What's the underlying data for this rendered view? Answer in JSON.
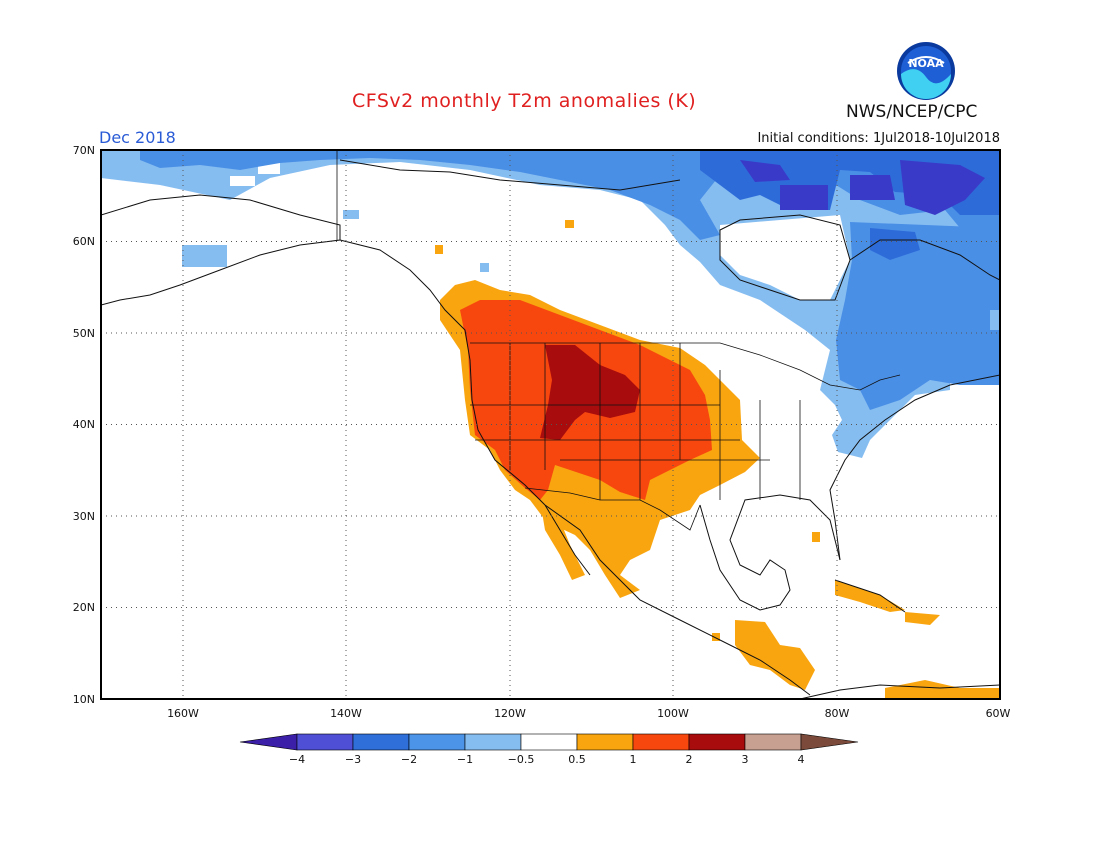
{
  "header": {
    "title": "CFSv2 monthly T2m anomalies (K)",
    "month": "Dec 2018",
    "initial_conditions": "Initial conditions: 1Jul2018-10Jul2018",
    "agency": "NWS/NCEP/CPC",
    "logo_text": "NOAA"
  },
  "map": {
    "lat_labels": [
      "70N",
      "60N",
      "50N",
      "40N",
      "30N",
      "20N",
      "10N"
    ],
    "lon_labels": [
      "160W",
      "140W",
      "120W",
      "100W",
      "80W",
      "60W"
    ],
    "region": "North America",
    "lon_range": [
      -170,
      -60
    ],
    "lat_range": [
      10,
      70
    ]
  },
  "colorbar": {
    "labels": [
      "-4",
      "-3",
      "-2",
      "-1",
      "-0.5",
      "0.5",
      "1",
      "2",
      "3",
      "4"
    ],
    "colors": [
      "#3b1fa8",
      "#4f4fd6",
      "#2e6fd9",
      "#4c94e8",
      "#86bdf1",
      "#ffffff",
      "#f9a50f",
      "#f7470f",
      "#a80c0c",
      "#c8a091",
      "#7b4a3a"
    ]
  },
  "anomaly_colors": {
    "cold_strong": "#3a3ac8",
    "cold_mid": "#2d6bd9",
    "cold_light": "#4a8fe6",
    "cold_pale": "#86bdf1",
    "warm_pale": "#f9a50f",
    "warm_mid": "#f7470f",
    "warm_strong": "#a80c0c"
  }
}
